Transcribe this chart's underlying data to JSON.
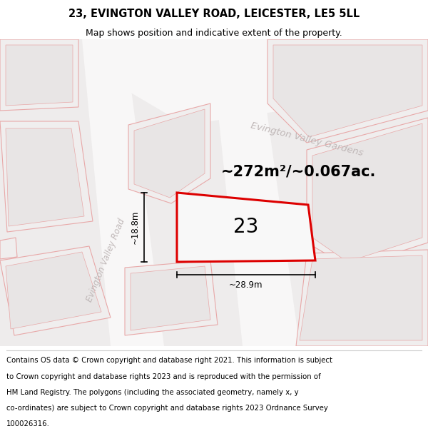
{
  "title": "23, EVINGTON VALLEY ROAD, LEICESTER, LE5 5LL",
  "subtitle": "Map shows position and indicative extent of the property.",
  "area_text": "~272m²/~0.067ac.",
  "number_label": "23",
  "dim_width": "~28.9m",
  "dim_height": "~18.8m",
  "road_label": "Evington Valley Road",
  "gardens_label": "Evington Valley Gardens",
  "map_bg": "#eeecec",
  "road_fill": "#f8f7f7",
  "building_fill": "#f0eeee",
  "building_fill_inner": "#e8e5e5",
  "building_stroke": "#e8a8a8",
  "plot_fill": "#f5f5f5",
  "plot_stroke": "#dd0000",
  "dim_color": "#444444",
  "label_road_color": "#c0b8b8",
  "label_gardens_color": "#c0b8b8",
  "title_fontsize": 10.5,
  "subtitle_fontsize": 9,
  "footer_fontsize": 7.3,
  "area_fontsize": 15,
  "number_fontsize": 20,
  "road_label_fontsize": 8.5,
  "gardens_label_fontsize": 9.5,
  "footer_lines": [
    "Contains OS data © Crown copyright and database right 2021. This information is subject",
    "to Crown copyright and database rights 2023 and is reproduced with the permission of",
    "HM Land Registry. The polygons (including the associated geometry, namely x, y",
    "co-ordinates) are subject to Crown copyright and database rights 2023 Ordnance Survey",
    "100026316."
  ]
}
